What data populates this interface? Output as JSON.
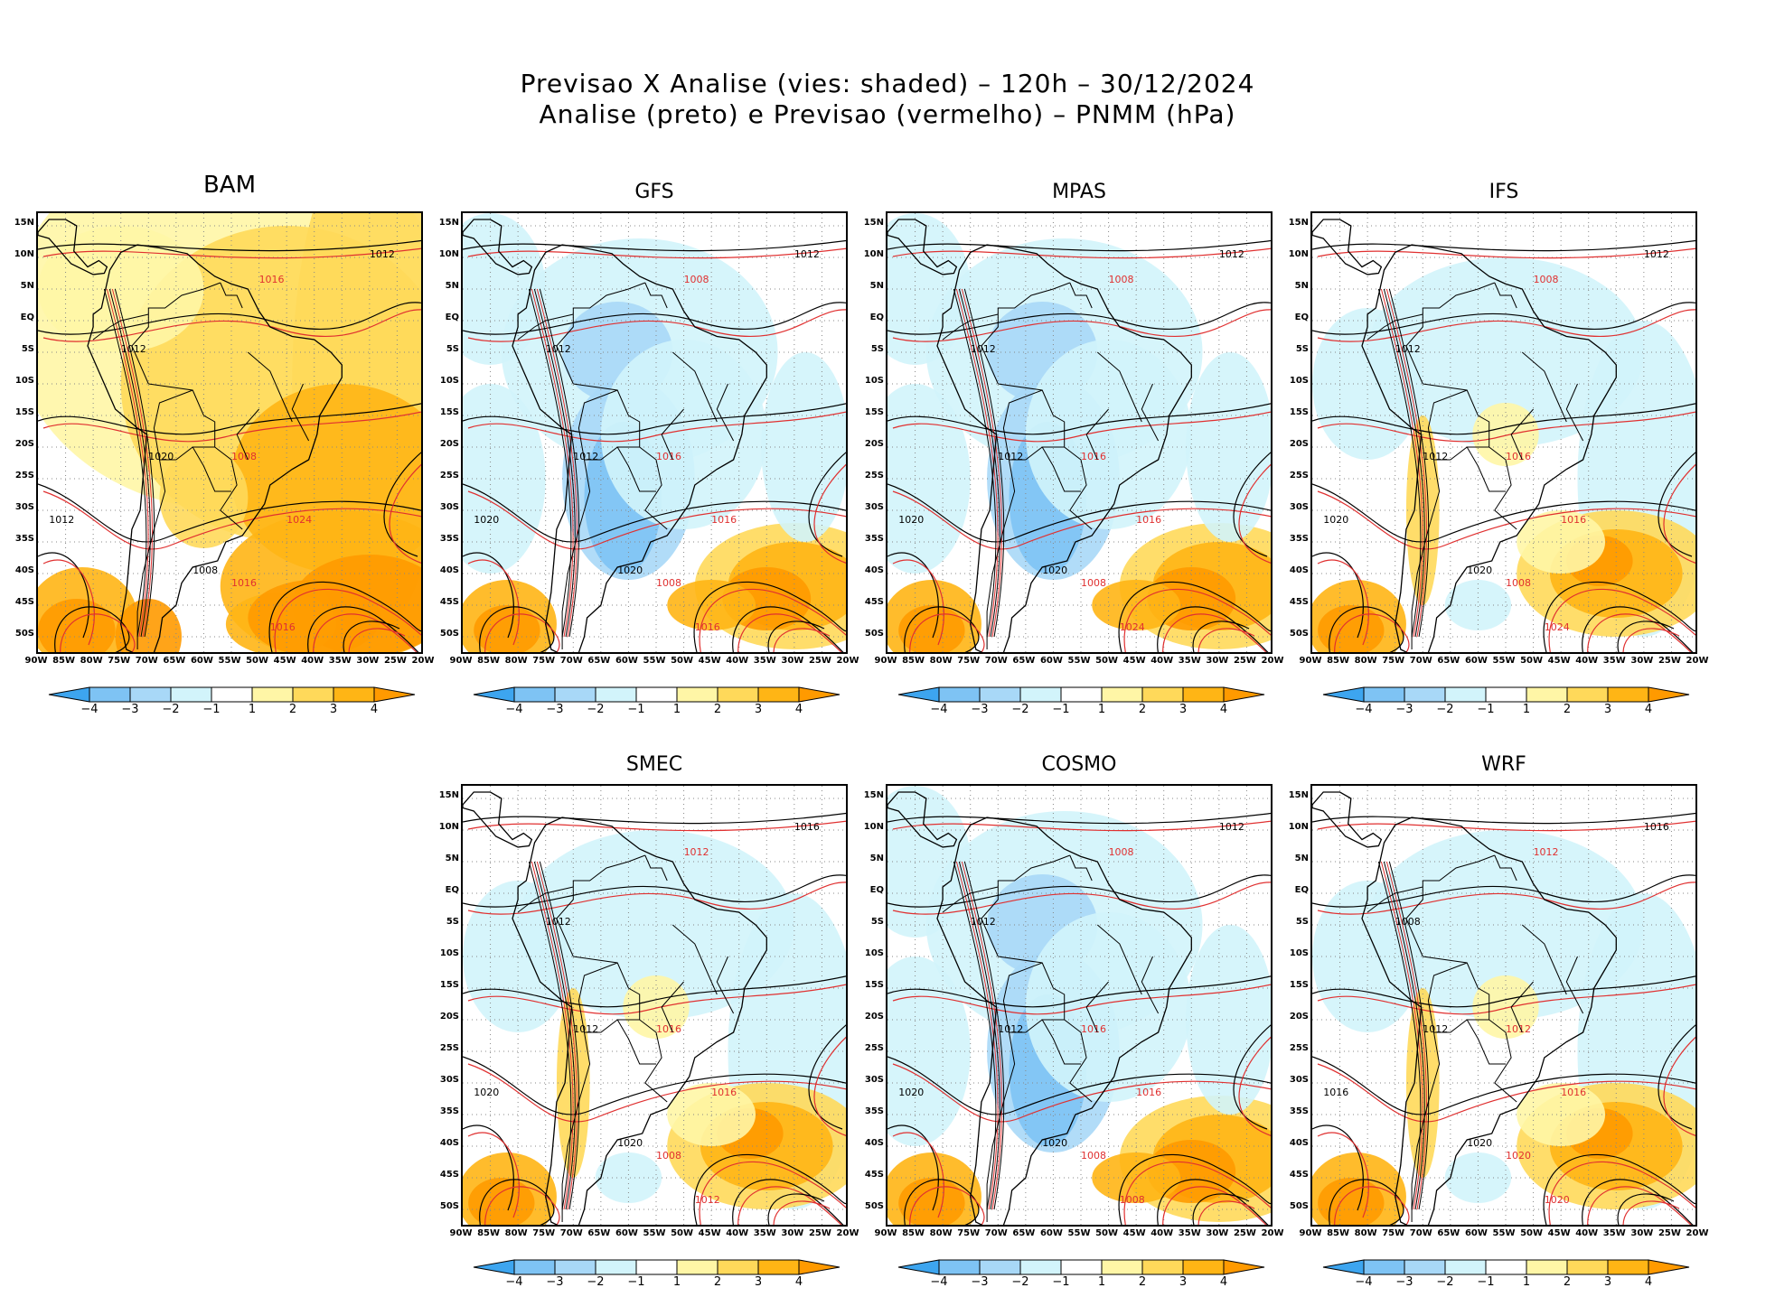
{
  "title_line1": "Previsao X Analise (vies: shaded) – 120h – 30/12/2024",
  "title_line2": "Analise (preto) e Previsao (vermelho) – PNMM (hPa)",
  "lat_labels": [
    "15N",
    "10N",
    "5N",
    "EQ",
    "5S",
    "10S",
    "15S",
    "20S",
    "25S",
    "30S",
    "35S",
    "40S",
    "45S",
    "50S"
  ],
  "lon_labels": [
    "90W",
    "85W",
    "80W",
    "75W",
    "70W",
    "65W",
    "60W",
    "55W",
    "50W",
    "45W",
    "40W",
    "35W",
    "30W",
    "25W",
    "20W"
  ],
  "colorbar": {
    "labels": [
      "−4",
      "−3",
      "−2",
      "−1",
      "1",
      "2",
      "3",
      "4"
    ],
    "colors": [
      "#3da5ef",
      "#7ec3f4",
      "#a8d8f7",
      "#d2f4fb",
      "#ffffff",
      "#fff6a6",
      "#ffd95a",
      "#ffb515",
      "#ff9a00"
    ]
  },
  "palette": {
    "pos1": "#fff6a6",
    "pos2": "#ffd95a",
    "pos3": "#ffb515",
    "pos4": "#ff9a00",
    "neg1": "#d2f4fb",
    "neg2": "#a8d8f7",
    "neg3": "#7ec3f4",
    "neg4": "#3da5ef",
    "analysis": "#000000",
    "forecast": "#e03030"
  },
  "panels": [
    {
      "id": "bam",
      "name": "BAM",
      "bias": "warm",
      "contours": [
        "1012",
        "1016",
        "1012",
        "1008",
        "1012",
        "1016",
        "1020",
        "1024",
        "1008",
        "1016"
      ]
    },
    {
      "id": "gfs",
      "name": "GFS",
      "bias": "cold",
      "contours": [
        "1012",
        "1008",
        "1012",
        "1016",
        "1020",
        "1008",
        "1012",
        "1016",
        "1020",
        "1016"
      ]
    },
    {
      "id": "mpas",
      "name": "MPAS",
      "bias": "cold",
      "contours": [
        "1012",
        "1008",
        "1012",
        "1016",
        "1020",
        "1008",
        "1012",
        "1016",
        "1020",
        "1024"
      ]
    },
    {
      "id": "ifs",
      "name": "IFS",
      "bias": "mixed",
      "contours": [
        "1012",
        "1008",
        "1012",
        "1016",
        "1020",
        "1008",
        "1012",
        "1016",
        "1020",
        "1024"
      ]
    },
    {
      "id": "smec",
      "name": "SMEC",
      "bias": "mixed",
      "contours": [
        "1016",
        "1012",
        "1012",
        "1016",
        "1020",
        "1008",
        "1012",
        "1016",
        "1020",
        "1012"
      ]
    },
    {
      "id": "cosmo",
      "name": "COSMO",
      "bias": "cold",
      "contours": [
        "1012",
        "1008",
        "1012",
        "1016",
        "1020",
        "1008",
        "1012",
        "1016",
        "1020",
        "1008"
      ]
    },
    {
      "id": "wrf",
      "name": "WRF",
      "bias": "mixed",
      "contours": [
        "1016",
        "1012",
        "1008",
        "1012",
        "1016",
        "1020",
        "1012",
        "1016",
        "1020",
        "1020"
      ]
    }
  ]
}
